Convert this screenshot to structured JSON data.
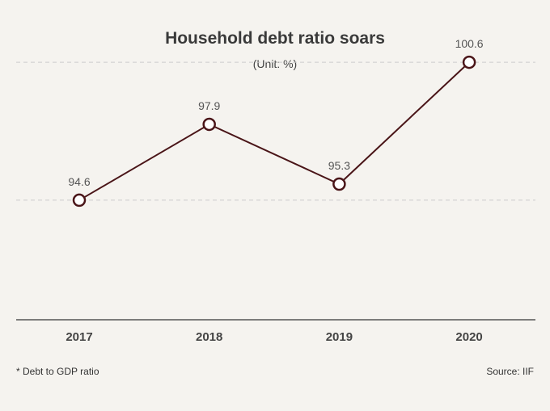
{
  "chart_data": {
    "type": "line",
    "title": "Household debt ratio soars",
    "subtitle": "(Unit: %)",
    "categories": [
      "2017",
      "2018",
      "2019",
      "2020"
    ],
    "series": [
      {
        "name": "Debt to GDP ratio",
        "values": [
          94.6,
          97.9,
          95.3,
          100.6
        ]
      }
    ],
    "data_labels": [
      "94.6",
      "97.9",
      "95.3",
      "100.6"
    ],
    "gridlines": [
      94.6,
      100.6
    ],
    "ylim": [
      89.4,
      101.2
    ],
    "xlabel": "",
    "ylabel": "",
    "footnote": "* Debt to GDP ratio",
    "source": "Source: IIF"
  },
  "colors": {
    "line": "#4a1518",
    "marker_fill": "#ffffff",
    "grid": "#cccccc",
    "axis": "#555555",
    "background": "#f5f3ef"
  }
}
